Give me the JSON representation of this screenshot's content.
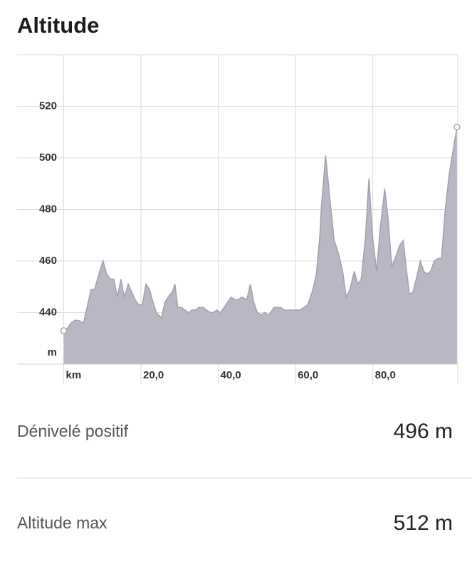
{
  "chart_data": {
    "type": "area",
    "title": "Altitude",
    "y_label": "m",
    "color": "#b9b7c3",
    "line_color": "#a3a0ad",
    "grid": true,
    "xlim": [
      0,
      102
    ],
    "ylim": [
      420,
      540
    ],
    "xticks": [
      {
        "value": 0,
        "label": "km"
      },
      {
        "value": 20,
        "label": "20,0"
      },
      {
        "value": 40,
        "label": "40,0"
      },
      {
        "value": 60,
        "label": "60,0"
      },
      {
        "value": 80,
        "label": "80,0"
      }
    ],
    "yticks": [
      440,
      460,
      480,
      500,
      520
    ],
    "x": [
      0,
      1.0,
      1.9,
      2.9,
      3.8,
      5.1,
      6.2,
      7.1,
      8.0,
      9.3,
      10.2,
      11.1,
      12.1,
      13.0,
      13.9,
      14.8,
      15.7,
      16.7,
      17.6,
      18.5,
      19.4,
      20.3,
      21.3,
      22.2,
      23.1,
      24.0,
      25.3,
      26.2,
      27.0,
      28.1,
      28.8,
      29.5,
      30.5,
      31.4,
      32.3,
      33.2,
      34.1,
      35.0,
      36.2,
      36.9,
      38.0,
      38.7,
      39.6,
      40.6,
      41.5,
      42.4,
      43.3,
      44.3,
      45.2,
      46.1,
      47.4,
      48.3,
      49.2,
      50.1,
      51.2,
      52.0,
      53.1,
      54.4,
      56.2,
      57.1,
      60.1,
      61.2,
      62.1,
      63.2,
      64.5,
      65.4,
      66.3,
      66.7,
      67.8,
      69.1,
      70.0,
      71.1,
      72.2,
      73.1,
      74.1,
      75.2,
      76.1,
      77.0,
      78.1,
      79.0,
      79.9,
      81.0,
      81.9,
      83.1,
      84.0,
      84.9,
      85.8,
      86.9,
      87.9,
      88.6,
      89.5,
      90.4,
      91.4,
      92.3,
      93.2,
      94.1,
      95.0,
      95.9,
      96.9,
      97.8,
      98.7,
      99.8,
      100.7,
      101.8
    ],
    "values": [
      433,
      434,
      436,
      437,
      437,
      436,
      443,
      449,
      449,
      456,
      460,
      455,
      453,
      453,
      446,
      453,
      446,
      451,
      448,
      445,
      443,
      443,
      451,
      449,
      444,
      440,
      438,
      444,
      446,
      448,
      451,
      442,
      442,
      441,
      440,
      441,
      441,
      442,
      442,
      441,
      440,
      440,
      441,
      440,
      442,
      444,
      446,
      445,
      445,
      446,
      445,
      451,
      444,
      440,
      439,
      440,
      439,
      442,
      442,
      441,
      441,
      441,
      442,
      443,
      449,
      455,
      470,
      481,
      501,
      481,
      468,
      463,
      456,
      446,
      449,
      456,
      451,
      453,
      469,
      492,
      470,
      456,
      472,
      488,
      476,
      458,
      461,
      466,
      468,
      458,
      447,
      448,
      454,
      460,
      456,
      455,
      456,
      460,
      461,
      461,
      479,
      494,
      502,
      512
    ]
  },
  "stats": [
    {
      "label": "Dénivelé positif",
      "value": "496 m"
    },
    {
      "label": "Altitude max",
      "value": "512 m"
    }
  ]
}
